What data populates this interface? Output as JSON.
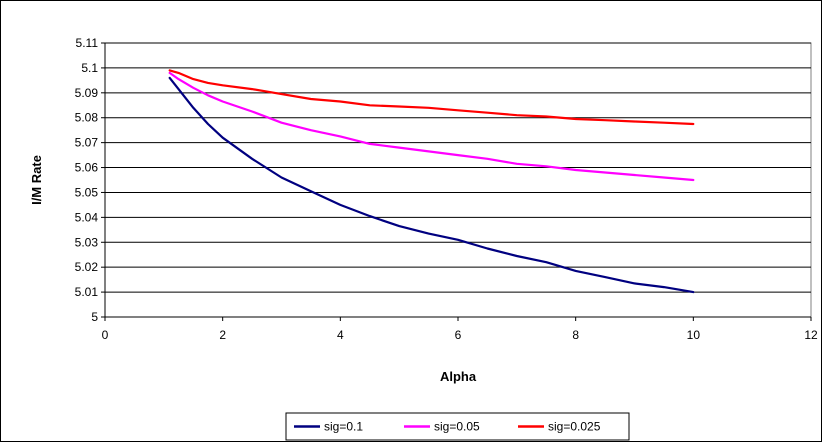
{
  "chart_data": {
    "type": "line",
    "title": "",
    "xlabel": "Alpha",
    "ylabel": "I/M Rate",
    "xlim": [
      0,
      12
    ],
    "ylim": [
      5,
      5.11
    ],
    "xticks": [
      "0",
      "2",
      "4",
      "6",
      "8",
      "10",
      "12"
    ],
    "yticks": [
      "5",
      "5.01",
      "5.02",
      "5.03",
      "5.04",
      "5.05",
      "5.06",
      "5.07",
      "5.08",
      "5.09",
      "5.1",
      "5.11"
    ],
    "grid": "horizontal",
    "legend_position": "bottom",
    "x": [
      1.1,
      1.25,
      1.5,
      1.75,
      2,
      2.5,
      3,
      3.5,
      4,
      4.5,
      5,
      5.5,
      6,
      6.5,
      7,
      7.5,
      8,
      8.5,
      9,
      9.5,
      10
    ],
    "series": [
      {
        "name": "sig=0.1",
        "color": "#000080",
        "values": [
          5.096,
          5.0915,
          5.084,
          5.0775,
          5.072,
          5.0635,
          5.056,
          5.0505,
          5.045,
          5.0405,
          5.0365,
          5.0335,
          5.031,
          5.0275,
          5.0245,
          5.022,
          5.0185,
          5.016,
          5.0135,
          5.012,
          5.01
        ]
      },
      {
        "name": "sig=0.05",
        "color": "#FF00FF",
        "values": [
          5.098,
          5.0955,
          5.092,
          5.089,
          5.0865,
          5.0825,
          5.078,
          5.075,
          5.0725,
          5.0695,
          5.068,
          5.0665,
          5.065,
          5.0635,
          5.0615,
          5.0605,
          5.059,
          5.058,
          5.057,
          5.056,
          5.055
        ]
      },
      {
        "name": "sig=0.025",
        "color": "#FF0000",
        "values": [
          5.099,
          5.098,
          5.0955,
          5.094,
          5.093,
          5.0915,
          5.0895,
          5.0875,
          5.0865,
          5.085,
          5.0845,
          5.084,
          5.083,
          5.082,
          5.081,
          5.0805,
          5.0795,
          5.079,
          5.0785,
          5.078,
          5.0775
        ]
      }
    ]
  }
}
